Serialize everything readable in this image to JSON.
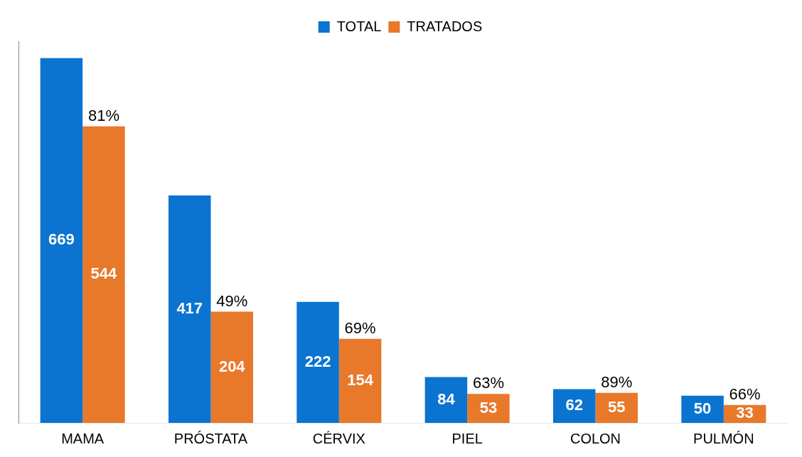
{
  "chart_data": {
    "type": "bar",
    "categories": [
      "MAMA",
      "PRÓSTATA",
      "CÉRVIX",
      "PIEL",
      "COLON",
      "PULMÓN"
    ],
    "series": [
      {
        "name": "TOTAL",
        "color": "#0a74d0",
        "values": [
          669,
          417,
          222,
          84,
          62,
          50
        ]
      },
      {
        "name": "TRATADOS",
        "color": "#e8782a",
        "values": [
          544,
          204,
          154,
          53,
          55,
          33
        ]
      }
    ],
    "annotations": [
      {
        "text": "81%",
        "x": "MAMA",
        "y": 544
      },
      {
        "text": "49%",
        "x": "PRÓSTATA",
        "y": 204
      },
      {
        "text": "69%",
        "x": "CÉRVIX",
        "y": 154
      },
      {
        "text": "63%",
        "x": "PIEL",
        "y": 53
      },
      {
        "text": "89%",
        "x": "COLON",
        "y": 55
      },
      {
        "text": "66%",
        "x": "PULMÓN",
        "y": 33
      }
    ],
    "data_labels": true,
    "legend": "top",
    "grid": false,
    "tick_labels": "x"
  }
}
